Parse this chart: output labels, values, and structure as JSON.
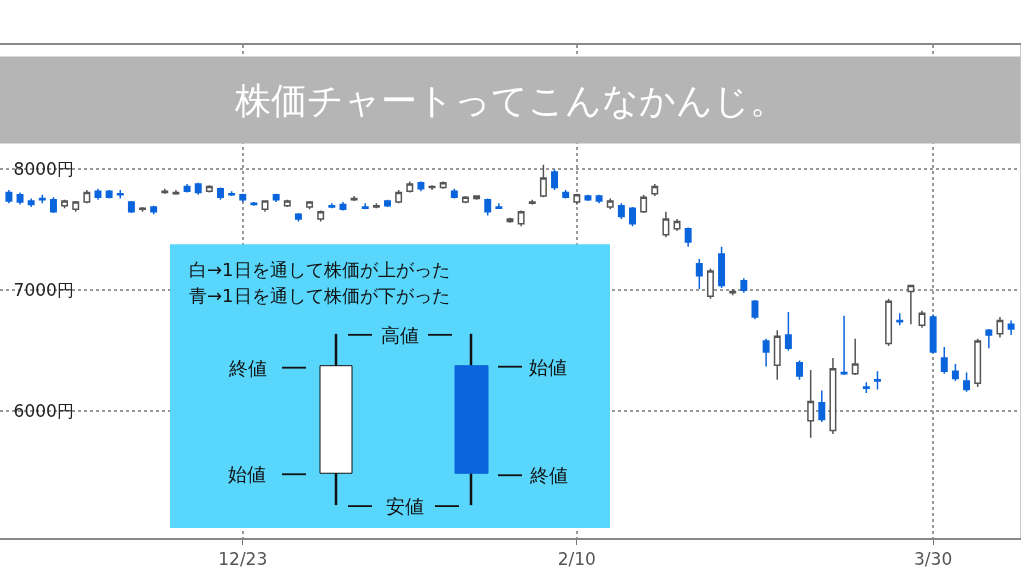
{
  "chart_data": {
    "type": "candlestick",
    "title": "株価チャートってこんなかんじ。",
    "categories": [
      null,
      null,
      null,
      null,
      null,
      null,
      null,
      null,
      null,
      null,
      null,
      null,
      null,
      null,
      null,
      null,
      null,
      null,
      null,
      null,
      null,
      "12/23",
      null,
      null,
      null,
      null,
      null,
      null,
      null,
      null,
      null,
      null,
      null,
      null,
      null,
      null,
      null,
      null,
      null,
      null,
      null,
      null,
      null,
      null,
      null,
      null,
      null,
      null,
      null,
      null,
      null,
      "2/10",
      null,
      null,
      null,
      null,
      null,
      null,
      null,
      null,
      null,
      null,
      null,
      null,
      null,
      null,
      null,
      null,
      null,
      null,
      null,
      null,
      null,
      null,
      null,
      null,
      null,
      null,
      null,
      null,
      null,
      null,
      null,
      "3/30",
      null,
      null,
      null,
      null,
      null,
      null,
      null
    ],
    "ohlc": [
      [
        7810,
        7830,
        7720,
        7740
      ],
      [
        7790,
        7810,
        7710,
        7730
      ],
      [
        7740,
        7760,
        7690,
        7710
      ],
      [
        7760,
        7790,
        7720,
        7750
      ],
      [
        7750,
        7770,
        7640,
        7650
      ],
      [
        7700,
        7750,
        7680,
        7740
      ],
      [
        7670,
        7740,
        7650,
        7730
      ],
      [
        7730,
        7830,
        7720,
        7810
      ],
      [
        7820,
        7840,
        7750,
        7770
      ],
      [
        7820,
        7830,
        7760,
        7770
      ],
      [
        7800,
        7830,
        7760,
        7790
      ],
      [
        7730,
        7740,
        7640,
        7650
      ],
      [
        7670,
        7690,
        7650,
        7680
      ],
      [
        7690,
        7700,
        7630,
        7650
      ],
      [
        7810,
        7840,
        7800,
        7820
      ],
      [
        7800,
        7830,
        7790,
        7810
      ],
      [
        7860,
        7880,
        7810,
        7820
      ],
      [
        7880,
        7890,
        7790,
        7810
      ],
      [
        7820,
        7870,
        7810,
        7860
      ],
      [
        7840,
        7850,
        7750,
        7770
      ],
      [
        7800,
        7820,
        7780,
        7790
      ],
      [
        7790,
        7800,
        7730,
        7750
      ],
      [
        7720,
        7730,
        7700,
        7710
      ],
      [
        7670,
        7740,
        7650,
        7740
      ],
      [
        7790,
        7800,
        7730,
        7750
      ],
      [
        7700,
        7750,
        7690,
        7740
      ],
      [
        7630,
        7640,
        7570,
        7590
      ],
      [
        7690,
        7740,
        7670,
        7730
      ],
      [
        7590,
        7660,
        7570,
        7650
      ],
      [
        7700,
        7720,
        7680,
        7690
      ],
      [
        7710,
        7730,
        7660,
        7670
      ],
      [
        7750,
        7780,
        7740,
        7760
      ],
      [
        7690,
        7720,
        7670,
        7680
      ],
      [
        7690,
        7720,
        7680,
        7700
      ],
      [
        7740,
        7750,
        7690,
        7700
      ],
      [
        7730,
        7830,
        7720,
        7810
      ],
      [
        7820,
        7900,
        7810,
        7880
      ],
      [
        7890,
        7900,
        7820,
        7840
      ],
      [
        7850,
        7870,
        7830,
        7860
      ],
      [
        7850,
        7900,
        7840,
        7890
      ],
      [
        7820,
        7840,
        7760,
        7770
      ],
      [
        7730,
        7780,
        7720,
        7770
      ],
      [
        7760,
        7780,
        7750,
        7780
      ],
      [
        7750,
        7760,
        7620,
        7650
      ],
      [
        7690,
        7720,
        7680,
        7680
      ],
      [
        7570,
        7600,
        7560,
        7590
      ],
      [
        7550,
        7660,
        7530,
        7650
      ],
      [
        7720,
        7750,
        7710,
        7730
      ],
      [
        7780,
        8040,
        7770,
        7930
      ],
      [
        7980,
        8000,
        7830,
        7850
      ],
      [
        7810,
        7830,
        7760,
        7770
      ],
      [
        7730,
        7800,
        7710,
        7790
      ],
      [
        7780,
        7790,
        7740,
        7750
      ],
      [
        7780,
        7790,
        7720,
        7740
      ],
      [
        7690,
        7760,
        7670,
        7740
      ],
      [
        7700,
        7720,
        7590,
        7610
      ],
      [
        7680,
        7690,
        7530,
        7550
      ],
      [
        7650,
        7790,
        7640,
        7770
      ],
      [
        7800,
        7880,
        7780,
        7860
      ],
      [
        7460,
        7650,
        7440,
        7590
      ],
      [
        7510,
        7590,
        7490,
        7570
      ],
      [
        7510,
        7520,
        7360,
        7400
      ],
      [
        7220,
        7260,
        7010,
        7120
      ],
      [
        6950,
        7180,
        6930,
        7160
      ],
      [
        7300,
        7360,
        7020,
        7040
      ],
      [
        6980,
        7010,
        6960,
        6990
      ],
      [
        7080,
        7100,
        6980,
        7000
      ],
      [
        6910,
        6920,
        6760,
        6780
      ],
      [
        6580,
        6600,
        6370,
        6490
      ],
      [
        6380,
        6670,
        6260,
        6620
      ],
      [
        6630,
        6820,
        6500,
        6520
      ],
      [
        6400,
        6420,
        6260,
        6290
      ],
      [
        5920,
        6340,
        5780,
        6080
      ],
      [
        6070,
        6170,
        5910,
        5930
      ],
      [
        5840,
        6440,
        5810,
        6350
      ],
      [
        6320,
        6790,
        6300,
        6310
      ],
      [
        6310,
        6600,
        6300,
        6390
      ],
      [
        6200,
        6240,
        6150,
        6190
      ],
      [
        6260,
        6330,
        6180,
        6250
      ],
      [
        6560,
        6930,
        6540,
        6910
      ],
      [
        6750,
        6810,
        6710,
        6740
      ],
      [
        6990,
        7040,
        6720,
        7040
      ],
      [
        6710,
        6830,
        6690,
        6810
      ],
      [
        6780,
        6800,
        6480,
        6490
      ],
      [
        6440,
        6530,
        6310,
        6330
      ],
      [
        6330,
        6390,
        6250,
        6270
      ],
      [
        6250,
        6320,
        6160,
        6180
      ],
      [
        6230,
        6600,
        6200,
        6580
      ],
      [
        6670,
        6680,
        6520,
        6630
      ],
      [
        6640,
        6780,
        6610,
        6750
      ],
      [
        6720,
        6750,
        6630,
        6680
      ]
    ],
    "colors": [
      "#0a64dc",
      "#0a64dc",
      "#0a64dc",
      "#0a64dc",
      "#0a64dc",
      "#555555",
      "#555555",
      "#555555",
      "#0a64dc",
      "#0a64dc",
      "#0a64dc",
      "#0a64dc",
      "#555555",
      "#0a64dc",
      "#555555",
      "#555555",
      "#0a64dc",
      "#0a64dc",
      "#555555",
      "#0a64dc",
      "#0a64dc",
      "#0a64dc",
      "#0a64dc",
      "#555555",
      "#0a64dc",
      "#555555",
      "#0a64dc",
      "#555555",
      "#555555",
      "#0a64dc",
      "#0a64dc",
      "#555555",
      "#0a64dc",
      "#555555",
      "#0a64dc",
      "#555555",
      "#555555",
      "#0a64dc",
      "#555555",
      "#555555",
      "#0a64dc",
      "#555555",
      "#555555",
      "#0a64dc",
      "#0a64dc",
      "#555555",
      "#555555",
      "#555555",
      "#555555",
      "#0a64dc",
      "#0a64dc",
      "#555555",
      "#0a64dc",
      "#0a64dc",
      "#555555",
      "#0a64dc",
      "#0a64dc",
      "#555555",
      "#555555",
      "#555555",
      "#555555",
      "#0a64dc",
      "#0a64dc",
      "#555555",
      "#0a64dc",
      "#555555",
      "#0a64dc",
      "#0a64dc",
      "#0a64dc",
      "#555555",
      "#0a64dc",
      "#0a64dc",
      "#555555",
      "#0a64dc",
      "#555555",
      "#0a64dc",
      "#555555",
      "#0a64dc",
      "#0a64dc",
      "#555555",
      "#0a64dc",
      "#555555",
      "#555555",
      "#0a64dc",
      "#0a64dc",
      "#0a64dc",
      "#0a64dc",
      "#555555",
      "#0a64dc",
      "#555555",
      "#0a64dc"
    ],
    "ylim": [
      4950,
      9030
    ],
    "yticks": [
      {
        "value": 6000,
        "label": "6000円"
      },
      {
        "value": 7000,
        "label": "7000円"
      },
      {
        "value": 8000,
        "label": "8000円"
      }
    ],
    "grid": true,
    "annotations": [
      "白→1日を通して株価が上がった",
      "青→1日を通して株価が下がった",
      "高値",
      "終値",
      "始値",
      "安値",
      "始値",
      "終値"
    ]
  }
}
